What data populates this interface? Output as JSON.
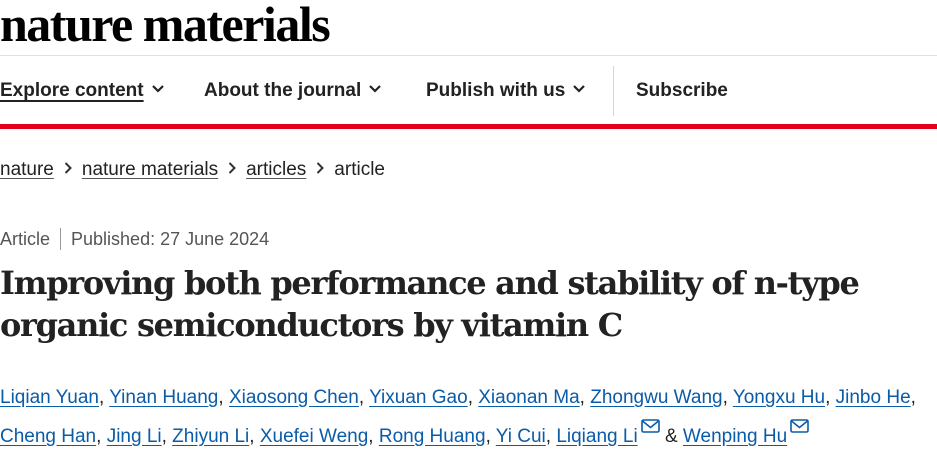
{
  "header": {
    "logo_text": "nature materials"
  },
  "nav": {
    "items": [
      {
        "label": "Explore content",
        "dropdown": true,
        "active": true
      },
      {
        "label": "About the journal",
        "dropdown": true,
        "active": false
      },
      {
        "label": "Publish with us",
        "dropdown": true,
        "active": false
      },
      {
        "label": "Subscribe",
        "dropdown": false,
        "active": false
      }
    ]
  },
  "breadcrumb": [
    "nature",
    "nature materials",
    "articles",
    "article"
  ],
  "article": {
    "type": "Article",
    "published": "Published: 27 June 2024",
    "title_line1": "Improving both performance and stability of n-type",
    "title_line2": "organic semiconductors by vitamin C"
  },
  "authors": {
    "line1": [
      "Liqian Yuan",
      "Yinan Huang",
      "Xiaosong Chen",
      "Yixuan Gao",
      "Xiaonan Ma",
      "Zhongwu Wang",
      "Yongxu Hu",
      "Jinbo He"
    ],
    "line2": [
      "Cheng Han",
      "Jing Li",
      "Zhiyun Li",
      "Xuefei Weng",
      "Rong Huang",
      "Yi Cui",
      "Liqiang Li"
    ],
    "separator": ",",
    "ampersand": "&",
    "last_author": "Wenping Hu"
  },
  "colors": {
    "accent_red": "#e3001b",
    "link_blue": "#0a5ba8",
    "text": "#222222"
  },
  "icons": {
    "dropdown": "chevron-down-icon",
    "breadcrumb": "chevron-right-icon",
    "contact": "mail-icon"
  }
}
